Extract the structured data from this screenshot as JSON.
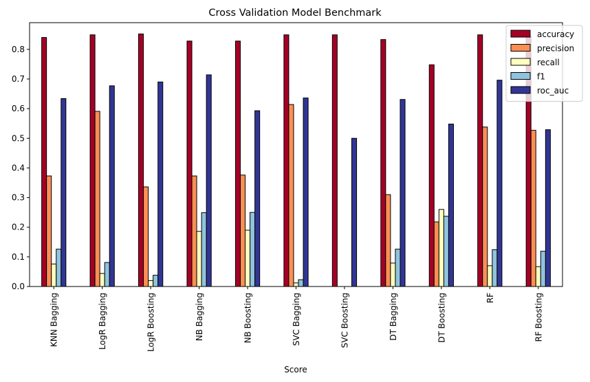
{
  "chart_data": {
    "type": "bar",
    "title": "Cross Validation Model Benchmark",
    "xlabel": "Score",
    "ylabel": "",
    "ylim": [
      0,
      0.89
    ],
    "yticks": [
      0.0,
      0.1,
      0.2,
      0.3,
      0.4,
      0.5,
      0.6,
      0.7,
      0.8
    ],
    "tick_labels": [
      "0.0",
      "0.1",
      "0.2",
      "0.3",
      "0.4",
      "0.5",
      "0.6",
      "0.7",
      "0.8"
    ],
    "grid": false,
    "legend_position": "top-right",
    "categories": [
      "KNN Bagging",
      "LogR Bagging",
      "LogR Boosting",
      "NB Bagging",
      "NB Boosting",
      "SVC Bagging",
      "SVC Boosting",
      "DT Bagging",
      "DT Boosting",
      "RF",
      "RF Boosting"
    ],
    "series": [
      {
        "name": "accuracy",
        "color": "#a50026",
        "values": [
          0.84,
          0.849,
          0.852,
          0.828,
          0.828,
          0.849,
          0.849,
          0.833,
          0.748,
          0.849,
          0.845
        ]
      },
      {
        "name": "precision",
        "color": "#fa8f54",
        "values": [
          0.373,
          0.591,
          0.336,
          0.373,
          0.376,
          0.614,
          0.0,
          0.31,
          0.218,
          0.538,
          0.527
        ]
      },
      {
        "name": "recall",
        "color": "#ffffbf",
        "values": [
          0.076,
          0.044,
          0.02,
          0.186,
          0.19,
          0.012,
          0.0,
          0.079,
          0.26,
          0.07,
          0.067
        ]
      },
      {
        "name": "f1",
        "color": "#90c3dd",
        "values": [
          0.126,
          0.081,
          0.038,
          0.249,
          0.25,
          0.023,
          0.0,
          0.126,
          0.237,
          0.124,
          0.119
        ]
      },
      {
        "name": "roc_auc",
        "color": "#313695",
        "values": [
          0.634,
          0.677,
          0.69,
          0.714,
          0.593,
          0.636,
          0.5,
          0.631,
          0.548,
          0.696,
          0.529
        ]
      }
    ]
  }
}
